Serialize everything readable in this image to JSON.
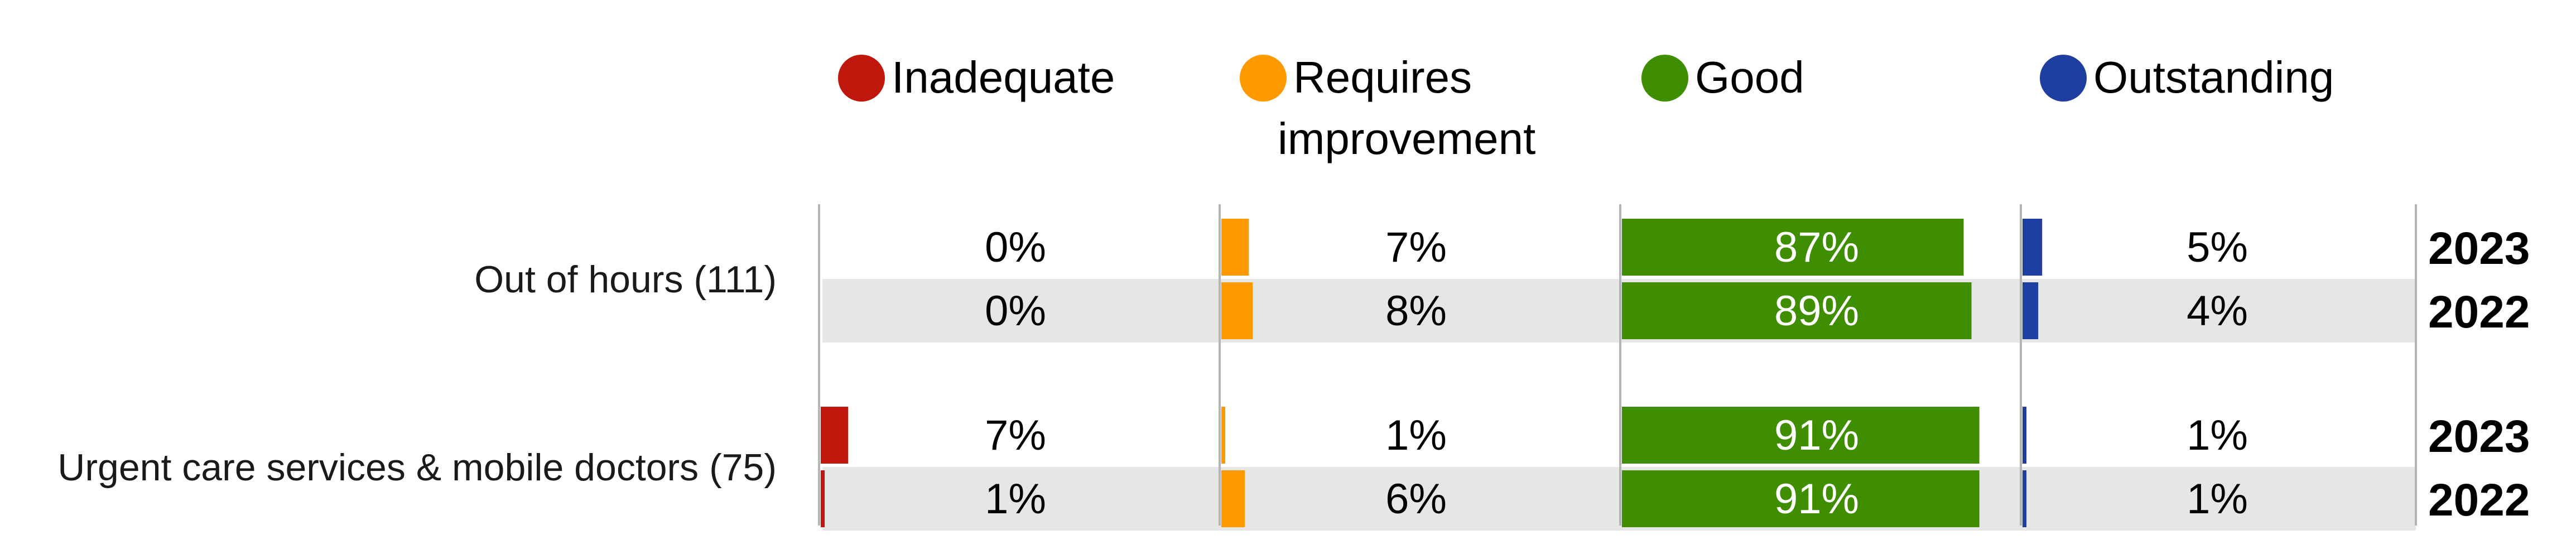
{
  "chart_data": {
    "type": "bar",
    "layout": "small-multiple horizontal bars",
    "categories": [
      "Out of hours (111)",
      "Urgent care services & mobile doctors (75)"
    ],
    "years": [
      "2023",
      "2022"
    ],
    "series": [
      {
        "name": "Inadequate",
        "color": "#c0180c",
        "text_color": "#000000",
        "values": {
          "Out of hours (111)": {
            "2023": 0,
            "2022": 0
          },
          "Urgent care services & mobile doctors (75)": {
            "2023": 7,
            "2022": 1
          }
        }
      },
      {
        "name": "Requires improvement",
        "name_lines": [
          "Requires",
          "improvement"
        ],
        "color": "#ff9900",
        "text_color": "#000000",
        "values": {
          "Out of hours (111)": {
            "2023": 7,
            "2022": 8
          },
          "Urgent care services & mobile doctors (75)": {
            "2023": 1,
            "2022": 6
          }
        }
      },
      {
        "name": "Good",
        "color": "#3e8e00",
        "text_color": "#ffffff",
        "values": {
          "Out of hours (111)": {
            "2023": 87,
            "2022": 89
          },
          "Urgent care services & mobile doctors (75)": {
            "2023": 91,
            "2022": 91
          }
        }
      },
      {
        "name": "Outstanding",
        "color": "#1f3fa0",
        "text_color": "#000000",
        "values": {
          "Out of hours (111)": {
            "2023": 5,
            "2022": 4
          },
          "Urgent care services & mobile doctors (75)": {
            "2023": 1,
            "2022": 1
          }
        }
      }
    ],
    "value_suffix": "%",
    "xlim": [
      0,
      100
    ],
    "legend": "top",
    "grid": false,
    "title": "",
    "xlabel": "",
    "ylabel": "",
    "band_color": "#e6e6e6"
  }
}
